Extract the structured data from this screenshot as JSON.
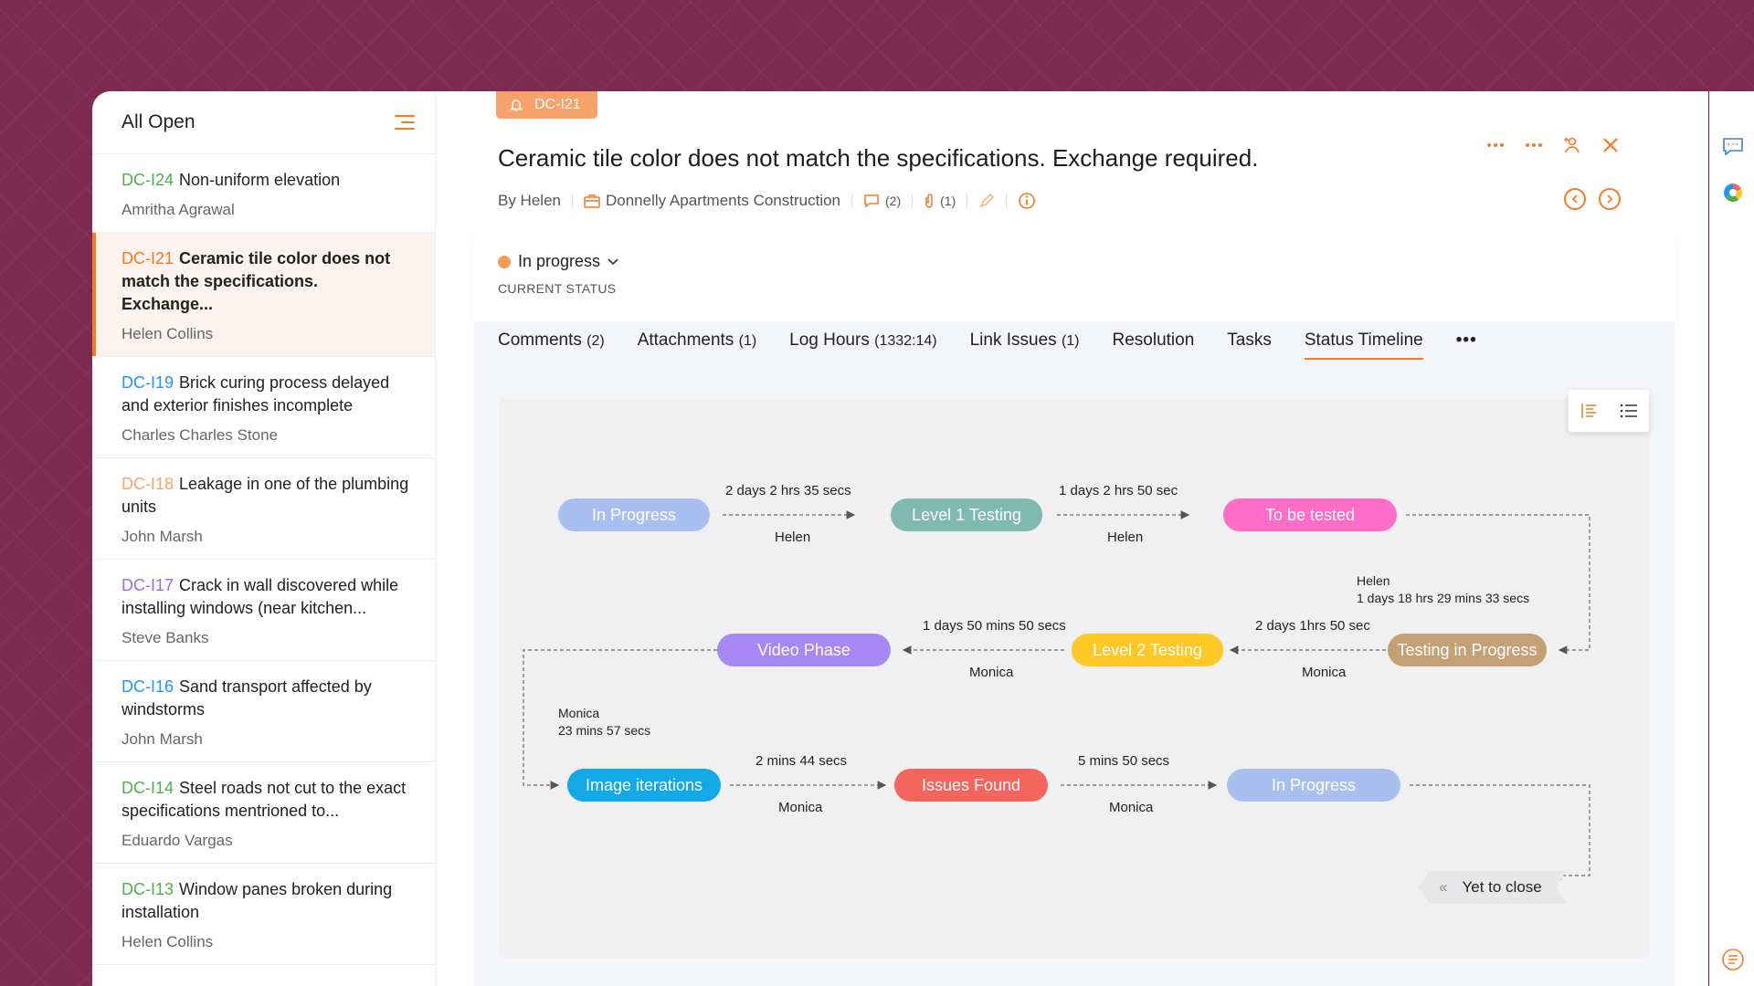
{
  "list": {
    "title": "All Open",
    "items": [
      {
        "id": "DC-I24",
        "id_color": "#4caf50",
        "title": "Non-uniform elevation",
        "owner": "Amritha Agrawal"
      },
      {
        "id": "DC-I21",
        "id_color": "#f47b20",
        "title": "Ceramic tile color does not match the specifications. Exchange...",
        "owner": "Helen Collins"
      },
      {
        "id": "DC-I19",
        "id_color": "#2196f3",
        "title": "Brick curing process delayed and exterior finishes incomplete",
        "owner": "Charles Charles Stone"
      },
      {
        "id": "DC-I18",
        "id_color": "#f7a26b",
        "title": "Leakage in one of the plumbing units",
        "owner": "John Marsh"
      },
      {
        "id": "DC-I17",
        "id_color": "#9c6ade",
        "title": "Crack in wall discovered while installing windows (near kitchen...",
        "owner": "Steve Banks"
      },
      {
        "id": "DC-I16",
        "id_color": "#2196f3",
        "title": "Sand transport affected by windstorms",
        "owner": "John Marsh"
      },
      {
        "id": "DC-I14",
        "id_color": "#4caf50",
        "title": "Steel roads not cut to the exact specifications mentrioned to...",
        "owner": "Eduardo Vargas"
      },
      {
        "id": "DC-I13",
        "id_color": "#4caf50",
        "title": "Window panes broken during installation",
        "owner": "Helen Collins"
      }
    ]
  },
  "issue": {
    "tag": "DC-I21",
    "title": "Ceramic tile color does not match the specifications. Exchange required.",
    "by": "By Helen",
    "project": "Donnelly Apartments Construction",
    "comments_count": "(2)",
    "attachments_count": "(1)",
    "status": "In progress",
    "status_label": "CURRENT STATUS"
  },
  "tabs": [
    {
      "label": "Comments",
      "count": "(2)"
    },
    {
      "label": "Attachments",
      "count": "(1)"
    },
    {
      "label": "Log Hours",
      "count": "(1332:14)"
    },
    {
      "label": "Link Issues",
      "count": "(1)"
    },
    {
      "label": "Resolution",
      "count": ""
    },
    {
      "label": "Tasks",
      "count": ""
    },
    {
      "label": "Status Timeline",
      "count": ""
    }
  ],
  "more_tab": "•••",
  "timeline": {
    "nodes": [
      {
        "label": "In Progress",
        "color": "#a9bff0"
      },
      {
        "label": "Level 1 Testing",
        "color": "#7fb9b0"
      },
      {
        "label": "To be tested",
        "color": "#ff6dc6"
      },
      {
        "label": "Testing in Progress",
        "color": "#c4a075"
      },
      {
        "label": "Level 2 Testing",
        "color": "#ffc825"
      },
      {
        "label": "Video Phase",
        "color": "#a787f3"
      },
      {
        "label": "Image iterations",
        "color": "#13a9e6"
      },
      {
        "label": "Issues Found",
        "color": "#f3655d"
      },
      {
        "label": "In Progress",
        "color": "#a9bff0"
      }
    ],
    "transitions": [
      {
        "duration": "2 days 2 hrs 35 secs",
        "user": "Helen"
      },
      {
        "duration": "1 days 2 hrs 50 sec",
        "user": "Helen"
      },
      {
        "duration": "1 days 18 hrs 29 mins 33 secs",
        "user": "Helen"
      },
      {
        "duration": "2 days 1hrs 50 sec",
        "user": "Monica"
      },
      {
        "duration": "1 days 50 mins 50 secs",
        "user": "Monica"
      },
      {
        "duration": "23 mins 57 secs",
        "user": "Monica"
      },
      {
        "duration": "2 mins 44 secs",
        "user": "Monica"
      },
      {
        "duration": "5 mins 50 secs",
        "user": "Monica"
      }
    ],
    "end_label": "Yet to close",
    "end_icon": "«"
  },
  "colors": {
    "accent": "#f47b20",
    "selected_bg": "#fdf3ee"
  }
}
